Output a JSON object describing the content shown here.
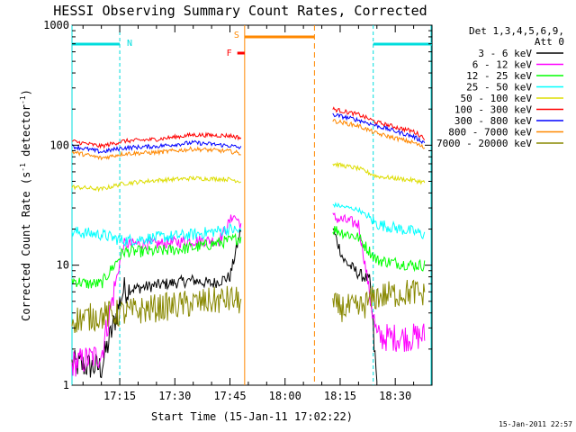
{
  "chart_data": {
    "type": "line",
    "title": "HESSI Observing Summary Count Rates, Corrected",
    "xlabel": "Start Time (15-Jan-11 17:02:22)",
    "ylabel": "Corrected Count Rate (s",
    "ylabel_sup": "-1",
    "ylabel_tail": " detector",
    "ylabel_tail_sup": "-1",
    "ylabel_close": ")",
    "y_scale": "log",
    "xlim": [
      "17:02",
      "18:40"
    ],
    "ylim": [
      1,
      1000
    ],
    "x_ticks": [
      "17:15",
      "17:30",
      "17:45",
      "18:00",
      "18:15",
      "18:30"
    ],
    "y_ticks": [
      "1",
      "10",
      "100",
      "1000"
    ],
    "footer_timestamp": "15-Jan-2011 22:57",
    "legend_header": [
      "Det 1,3,4,5,6,9,",
      "Att 0"
    ],
    "markers": {
      "night_label": "N",
      "saa_label": "S",
      "flare_label": "F",
      "night_periods": [
        [
          "17:02",
          "17:15"
        ],
        [
          "18:24",
          "18:40"
        ]
      ],
      "saa_period": [
        "17:49",
        "18:08"
      ],
      "flare_period": [
        "17:47",
        "17:49"
      ]
    },
    "series": [
      {
        "name": "3 - 6 keV",
        "color": "#000000",
        "data": [
          [
            "17:02",
            1.5
          ],
          [
            "17:10",
            1.4
          ],
          [
            "17:16",
            6.2
          ],
          [
            "17:25",
            6.8
          ],
          [
            "17:35",
            7.5
          ],
          [
            "17:40",
            7.0
          ],
          [
            "17:45",
            8.0
          ],
          [
            "17:48",
            20
          ],
          [
            "18:13",
            20
          ],
          [
            "18:16",
            11
          ],
          [
            "18:20",
            8.5
          ],
          [
            "18:23",
            7.5
          ],
          [
            "18:25",
            1.0
          ]
        ]
      },
      {
        "name": "6 - 12 keV",
        "color": "#ff00ff",
        "data": [
          [
            "17:02",
            1.5
          ],
          [
            "17:10",
            1.8
          ],
          [
            "17:16",
            15
          ],
          [
            "17:25",
            15
          ],
          [
            "17:35",
            16
          ],
          [
            "17:42",
            16
          ],
          [
            "17:46",
            26
          ],
          [
            "17:48",
            22
          ],
          [
            "18:13",
            25
          ],
          [
            "18:20",
            22
          ],
          [
            "18:25",
            2.5
          ],
          [
            "18:35",
            2.5
          ],
          [
            "18:38",
            2.6
          ]
        ]
      },
      {
        "name": "12 - 25 keV",
        "color": "#00ff00",
        "data": [
          [
            "17:02",
            7.5
          ],
          [
            "17:06",
            7.0
          ],
          [
            "17:10",
            7.0
          ],
          [
            "17:16",
            13
          ],
          [
            "17:25",
            13
          ],
          [
            "17:35",
            14
          ],
          [
            "17:45",
            16
          ],
          [
            "17:48",
            17
          ],
          [
            "18:13",
            20
          ],
          [
            "18:20",
            17
          ],
          [
            "18:25",
            11
          ],
          [
            "18:35",
            10
          ],
          [
            "18:38",
            10
          ]
        ]
      },
      {
        "name": "25 - 50 keV",
        "color": "#00ffff",
        "data": [
          [
            "17:02",
            19
          ],
          [
            "17:10",
            18
          ],
          [
            "17:16",
            16
          ],
          [
            "17:25",
            17
          ],
          [
            "17:35",
            18
          ],
          [
            "17:45",
            20
          ],
          [
            "17:48",
            19
          ],
          [
            "18:13",
            32
          ],
          [
            "18:20",
            29
          ],
          [
            "18:25",
            22
          ],
          [
            "18:35",
            19
          ],
          [
            "18:38",
            18
          ]
        ]
      },
      {
        "name": "50 - 100 keV",
        "color": "#dddd00",
        "data": [
          [
            "17:02",
            45
          ],
          [
            "17:10",
            43
          ],
          [
            "17:16",
            48
          ],
          [
            "17:25",
            51
          ],
          [
            "17:35",
            53
          ],
          [
            "17:45",
            52
          ],
          [
            "17:48",
            50
          ],
          [
            "18:13",
            70
          ],
          [
            "18:20",
            64
          ],
          [
            "18:25",
            55
          ],
          [
            "18:35",
            51
          ],
          [
            "18:38",
            49
          ]
        ]
      },
      {
        "name": "100 - 300 keV",
        "color": "#ff0000",
        "data": [
          [
            "17:02",
            108
          ],
          [
            "17:10",
            98
          ],
          [
            "17:16",
            108
          ],
          [
            "17:25",
            112
          ],
          [
            "17:35",
            122
          ],
          [
            "17:45",
            120
          ],
          [
            "17:48",
            115
          ],
          [
            "18:13",
            200
          ],
          [
            "18:20",
            180
          ],
          [
            "18:25",
            155
          ],
          [
            "18:35",
            130
          ],
          [
            "18:38",
            115
          ]
        ]
      },
      {
        "name": "300 - 800 keV",
        "color": "#0000ff",
        "data": [
          [
            "17:02",
            98
          ],
          [
            "17:10",
            88
          ],
          [
            "17:16",
            95
          ],
          [
            "17:25",
            98
          ],
          [
            "17:35",
            105
          ],
          [
            "17:45",
            99
          ],
          [
            "17:48",
            95
          ],
          [
            "18:13",
            180
          ],
          [
            "18:20",
            162
          ],
          [
            "18:25",
            145
          ],
          [
            "18:35",
            118
          ],
          [
            "18:38",
            105
          ]
        ]
      },
      {
        "name": "800 - 7000 keV",
        "color": "#ff8800",
        "data": [
          [
            "17:02",
            88
          ],
          [
            "17:10",
            78
          ],
          [
            "17:16",
            85
          ],
          [
            "17:25",
            87
          ],
          [
            "17:35",
            93
          ],
          [
            "17:45",
            89
          ],
          [
            "17:48",
            85
          ],
          [
            "18:13",
            160
          ],
          [
            "18:20",
            145
          ],
          [
            "18:25",
            125
          ],
          [
            "18:35",
            105
          ],
          [
            "18:38",
            95
          ]
        ]
      },
      {
        "name": "7000 - 20000 keV",
        "color": "#888800",
        "data": [
          [
            "17:02",
            3.5
          ],
          [
            "17:10",
            3.8
          ],
          [
            "17:16",
            4.0
          ],
          [
            "17:25",
            4.4
          ],
          [
            "17:35",
            4.8
          ],
          [
            "17:45",
            5.2
          ],
          [
            "17:48",
            5.0
          ],
          [
            "18:13",
            4.5
          ],
          [
            "18:20",
            4.3
          ],
          [
            "18:25",
            5.5
          ],
          [
            "18:35",
            6.0
          ],
          [
            "18:38",
            5.5
          ]
        ]
      }
    ]
  }
}
